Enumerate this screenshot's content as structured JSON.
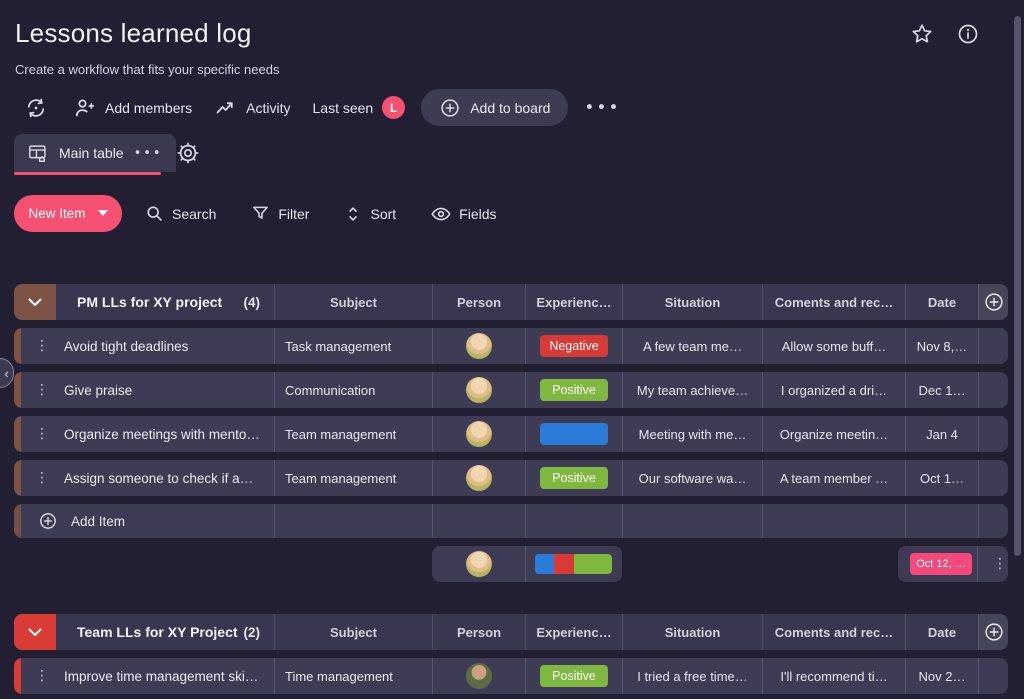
{
  "page": {
    "title": "Lessons learned log",
    "subtitle": "Create a workflow that fits your specific needs"
  },
  "header_actions": {
    "add_members": "Add members",
    "activity": "Activity",
    "last_seen": "Last seen",
    "last_seen_badge": "L",
    "add_to_board": "Add to board",
    "more": "•••"
  },
  "tabs": {
    "main_table": "Main table",
    "more": "•••"
  },
  "toolbar": {
    "new_item": "New Item",
    "search": "Search",
    "filter": "Filter",
    "sort": "Sort",
    "fields": "Fields"
  },
  "columns": {
    "subject": "Subject",
    "person": "Person",
    "experience": "Experienc…",
    "situation": "Situation",
    "comments": "Coments and rec…",
    "date": "Date"
  },
  "icons": {
    "dots_v": "⋮",
    "chevron_left": "‹"
  },
  "colors": {
    "accent_pink": "#f65073",
    "positive_green": "#7eb83e",
    "negative_red": "#d83a35",
    "info_blue": "#2b7cd9"
  },
  "groups": [
    {
      "title": "PM LLs for XY project",
      "count": "(4)",
      "color": "#7d5345",
      "rows": [
        {
          "name": "Avoid tight deadlines",
          "subject": "Task management",
          "experience": {
            "label": "Negative",
            "color": "#d83a35"
          },
          "situation": "A few team me…",
          "comments": "Allow some buff…",
          "date": "Nov 8,…"
        },
        {
          "name": "Give praise",
          "subject": "Communication",
          "experience": {
            "label": "Positive",
            "color": "#7eb83e"
          },
          "situation": "My team achieve…",
          "comments": "I organized a dri…",
          "date": "Dec 1…"
        },
        {
          "name": "Organize meetings with mento…",
          "subject": "Team management",
          "experience": {
            "label": "",
            "color": "#2b7cd9"
          },
          "situation": "Meeting with me…",
          "comments": "Organize meetin…",
          "date": "Jan 4"
        },
        {
          "name": "Assign someone to check if a…",
          "subject": "Team management",
          "experience": {
            "label": "Positive",
            "color": "#7eb83e"
          },
          "situation": "Our software wa…",
          "comments": "A team member …",
          "date": "Oct 1…"
        }
      ],
      "add_item": "Add Item",
      "summary": {
        "date": "Oct 12, …",
        "date_color": "#f6497b",
        "bar": [
          {
            "color": "#2b7cd9",
            "pct": 25
          },
          {
            "color": "#d83a35",
            "pct": 25
          },
          {
            "color": "#7eb83e",
            "pct": 50
          }
        ]
      }
    },
    {
      "title": "Team LLs for XY Project",
      "count": "(2)",
      "color": "#d93b36",
      "rows": [
        {
          "name": "Improve time management ski…",
          "subject": "Time management",
          "experience": {
            "label": "Positive",
            "color": "#7eb83e"
          },
          "situation": "I tried a free time…",
          "comments": "I'll recommend ti…",
          "date": "Nov 2…"
        }
      ]
    }
  ]
}
